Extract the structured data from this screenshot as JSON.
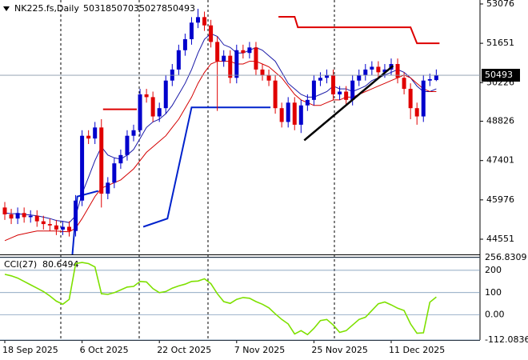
{
  "chart_data": {
    "type": "candlestick",
    "title": "NK225.fs,Daily",
    "categories": [
      "18 Sep 2025",
      null,
      null,
      null,
      null,
      null,
      null,
      null,
      null,
      null,
      null,
      null,
      "6 Oct 2025",
      null,
      null,
      null,
      null,
      null,
      null,
      null,
      null,
      null,
      null,
      null,
      "22 Oct 2025",
      null,
      null,
      null,
      null,
      null,
      null,
      null,
      null,
      null,
      null,
      null,
      "7 Nov 2025",
      null,
      null,
      null,
      null,
      null,
      null,
      null,
      null,
      null,
      null,
      null,
      "25 Nov 2025",
      null,
      null,
      null,
      null,
      null,
      null,
      null,
      null,
      null,
      null,
      null,
      "11 Dec 2025",
      null,
      null,
      null,
      null,
      null,
      null,
      null
    ],
    "open": [
      45700,
      45450,
      45300,
      45500,
      45350,
      45400,
      45200,
      45100,
      45050,
      44900,
      45000,
      44850,
      45950,
      48300,
      48200,
      48600,
      46200,
      46600,
      47300,
      47600,
      48300,
      48500,
      49800,
      49700,
      49000,
      49300,
      50300,
      50700,
      51400,
      51800,
      52400,
      52600,
      52300,
      51700,
      51000,
      51200,
      50400,
      51400,
      51300,
      51500,
      50700,
      50500,
      50300,
      49300,
      48800,
      49500,
      48700,
      49400,
      49600,
      50300,
      50400,
      50500,
      49800,
      49900,
      49600,
      50300,
      50500,
      50700,
      50800,
      50600,
      50700,
      50900,
      50400,
      50000,
      49300,
      49000,
      50300,
      50318
    ],
    "high": [
      45900,
      45650,
      45700,
      45700,
      45600,
      45600,
      45400,
      45300,
      45250,
      45200,
      45200,
      46150,
      48500,
      48500,
      48800,
      48900,
      46800,
      47500,
      47800,
      48500,
      48700,
      50000,
      50000,
      49900,
      49500,
      50500,
      50900,
      51600,
      52000,
      52600,
      52900,
      52800,
      52500,
      51900,
      51400,
      51400,
      51600,
      51600,
      51700,
      51700,
      50900,
      50700,
      50500,
      49500,
      49700,
      49700,
      49600,
      49800,
      50500,
      50600,
      50700,
      50700,
      50100,
      50100,
      50500,
      50700,
      50900,
      51000,
      51000,
      50900,
      51100,
      51100,
      50600,
      50200,
      49500,
      50500,
      50550,
      50703
    ],
    "low": [
      45250,
      45100,
      45100,
      45150,
      45150,
      45000,
      44900,
      44850,
      44700,
      44700,
      44650,
      44650,
      45750,
      48000,
      48000,
      45700,
      46000,
      46400,
      47100,
      47400,
      48100,
      48300,
      49500,
      48800,
      48800,
      49100,
      50100,
      50500,
      51200,
      51600,
      52200,
      52100,
      51500,
      49200,
      50800,
      50200,
      50200,
      51100,
      51100,
      50500,
      50300,
      50100,
      49100,
      48600,
      48600,
      48500,
      48400,
      49200,
      49400,
      50100,
      50200,
      49600,
      49600,
      49400,
      49400,
      50100,
      50300,
      50500,
      50400,
      50400,
      50500,
      50200,
      49800,
      48900,
      48700,
      48800,
      50100,
      50278
    ],
    "close": [
      45450,
      45300,
      45500,
      45350,
      45400,
      45200,
      45100,
      45050,
      44900,
      45000,
      44850,
      45950,
      48300,
      48200,
      48600,
      46200,
      46600,
      47300,
      47600,
      48300,
      48500,
      49800,
      49700,
      49000,
      49300,
      50300,
      50700,
      51400,
      51800,
      52400,
      52600,
      52300,
      51700,
      51000,
      51200,
      50400,
      51400,
      51300,
      51500,
      50700,
      50500,
      50300,
      49300,
      48800,
      49500,
      48700,
      49400,
      49600,
      50300,
      50400,
      50500,
      49800,
      49900,
      49600,
      50300,
      50500,
      50700,
      50800,
      50600,
      50700,
      50900,
      50400,
      50000,
      49300,
      49000,
      50300,
      50350,
      50493
    ],
    "up_color": "#0000cc",
    "down_color": "#e00000",
    "ylim": [
      44000,
      53220
    ],
    "yticks": [
      53076,
      51651,
      50226,
      48826,
      47401,
      45976,
      44551
    ],
    "overlays": [
      {
        "color": "#1a1aa8",
        "values": [
          45500,
          45480,
          45470,
          45450,
          45430,
          45400,
          45350,
          45300,
          45230,
          45200,
          45150,
          45400,
          46200,
          46800,
          47400,
          47900,
          47600,
          47500,
          47450,
          47600,
          47800,
          48200,
          48600,
          48800,
          48900,
          49100,
          49400,
          49800,
          50200,
          50700,
          51300,
          51800,
          52000,
          51900,
          51600,
          51500,
          51300,
          51300,
          51400,
          51500,
          51400,
          51200,
          51000,
          50600,
          50200,
          50000,
          49800,
          49700,
          49700,
          49800,
          49900,
          50100,
          50000,
          50000,
          49900,
          50000,
          50100,
          50300,
          50400,
          50500,
          50600,
          50700,
          50600,
          50400,
          50100,
          49900,
          49900,
          50000
        ]
      },
      {
        "color": "#d40000",
        "values": [
          44500,
          44600,
          44700,
          44750,
          44800,
          44850,
          44850,
          44850,
          44850,
          44830,
          44820,
          44950,
          45300,
          45700,
          46100,
          46400,
          46500,
          46600,
          46700,
          46900,
          47100,
          47400,
          47700,
          47900,
          48100,
          48300,
          48600,
          48900,
          49300,
          49700,
          50200,
          50600,
          50900,
          51000,
          51000,
          51000,
          50900,
          50900,
          51000,
          51000,
          50900,
          50800,
          50600,
          50400,
          50100,
          49800,
          49600,
          49500,
          49400,
          49400,
          49500,
          49600,
          49600,
          49700,
          49700,
          49800,
          49900,
          50000,
          50100,
          50200,
          50300,
          50400,
          50500,
          50400,
          50200,
          50000,
          49900,
          49900
        ]
      }
    ],
    "levels": [
      {
        "color": "#dd0000",
        "x": [
          15.25,
          20.5
        ],
        "values": [
          49260,
          49260
        ]
      },
      {
        "color": "#dd0000",
        "x": [
          42.5,
          45,
          45.5,
          63,
          64,
          67.5
        ],
        "values": [
          52610,
          52610,
          52230,
          52230,
          51651,
          51651
        ]
      },
      {
        "color": "#0022cc",
        "x": [
          10.5,
          11.25,
          14.5
        ],
        "values": [
          44000,
          46100,
          46300
        ]
      },
      {
        "color": "#0022cc",
        "x": [
          21.5,
          25.25,
          29,
          41.25
        ],
        "values": [
          45000,
          45300,
          49330,
          49330
        ]
      }
    ],
    "trendline": {
      "color": "#000000",
      "x": [
        46.5,
        60.3
      ],
      "values": [
        48134,
        50837
      ]
    },
    "cci": {
      "title": "CCI(27)",
      "color": "#7ee000",
      "values": [
        182,
        175,
        165,
        150,
        135,
        120,
        105,
        85,
        62,
        48,
        70,
        230,
        235,
        230,
        215,
        95,
        92,
        100,
        112,
        125,
        128,
        150,
        148,
        118,
        100,
        105,
        120,
        130,
        138,
        150,
        152,
        162,
        140,
        95,
        60,
        52,
        70,
        78,
        75,
        60,
        48,
        32,
        5,
        -20,
        -40,
        -85,
        -70,
        -88,
        -60,
        -25,
        -20,
        -45,
        -78,
        -70,
        -45,
        -20,
        -10,
        20,
        50,
        58,
        45,
        30,
        20,
        -40,
        -82,
        -80,
        57,
        80.6494
      ],
      "ylim": [
        -112.0836,
        256.8309
      ],
      "yticks": [
        256.8309,
        200,
        100,
        {
          "value": 0,
          "label": "0.00"
        },
        -112.0836
      ]
    }
  }
}
